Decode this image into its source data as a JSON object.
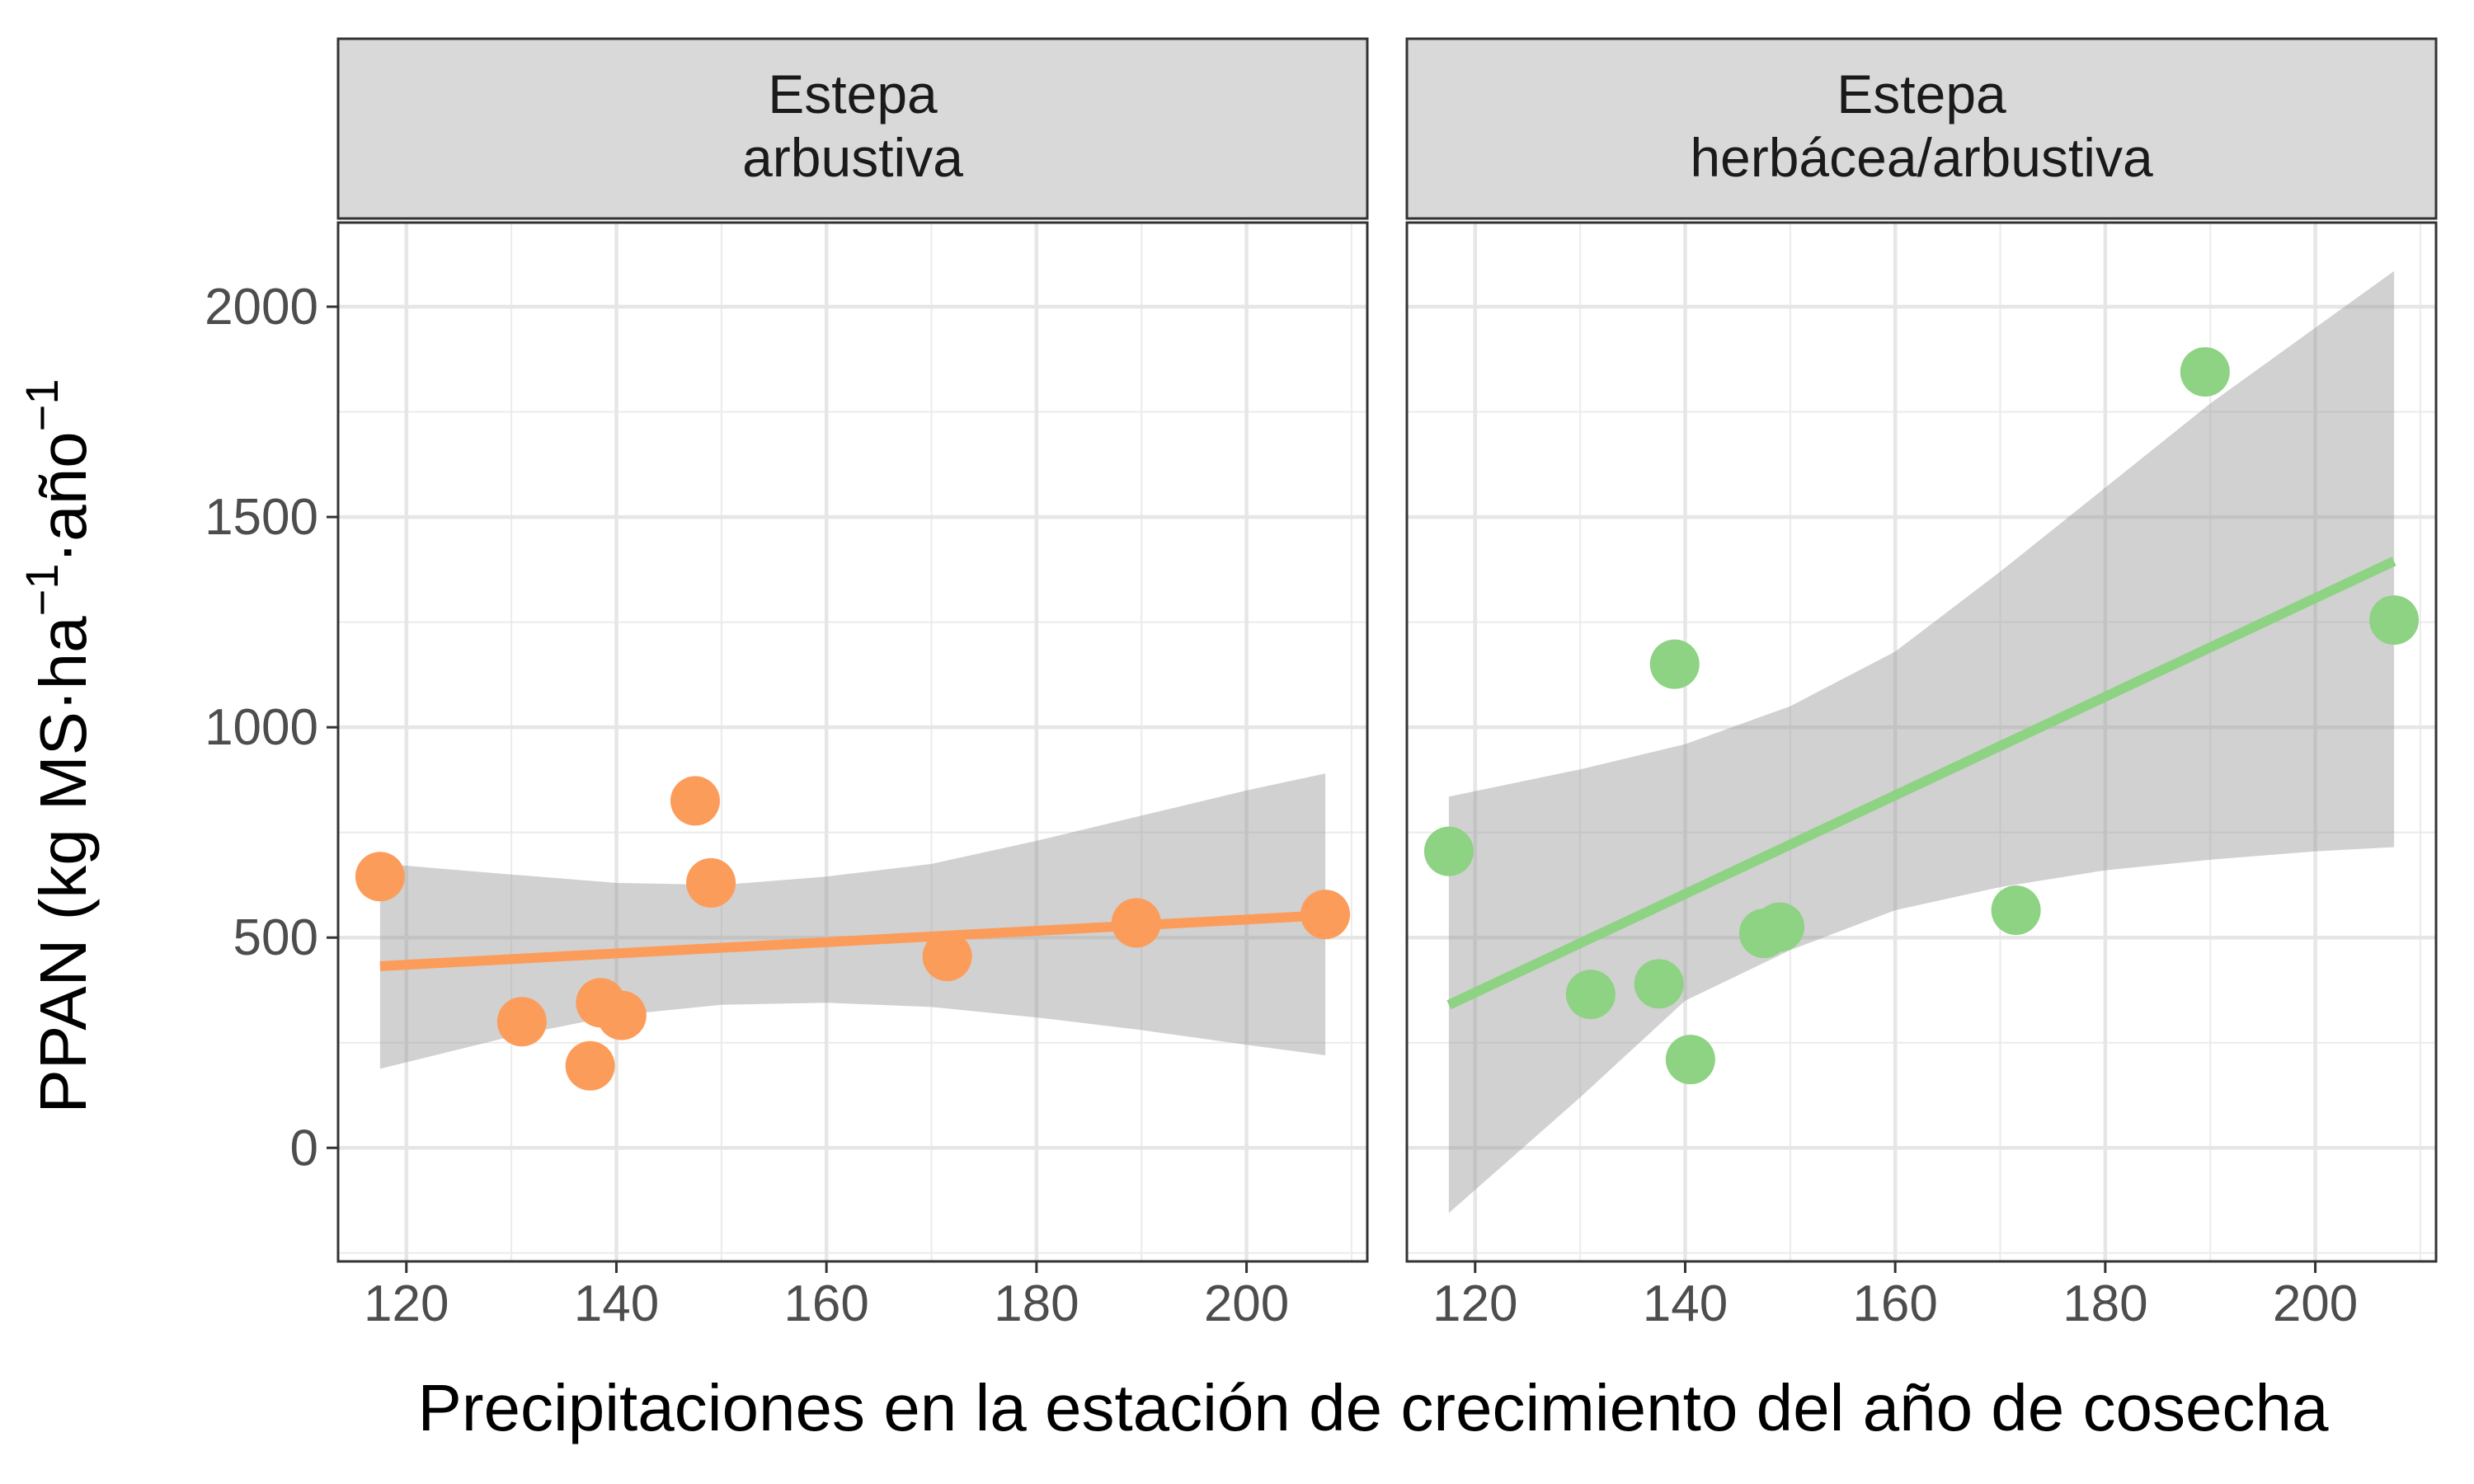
{
  "chart_data": {
    "type": "scatter",
    "ylabel": "PPAN (kg MS·ha⁻¹·año⁻¹)",
    "xlabel": "Precipitaciones en la estación de crecimiento del año de cosecha",
    "xlim": [
      113.5,
      211.5
    ],
    "ylim": [
      -270,
      2200
    ],
    "x_ticks": [
      "120",
      "140",
      "160",
      "180",
      "200"
    ],
    "y_ticks": [
      "0",
      "500",
      "1000",
      "1500",
      "2000"
    ],
    "grid": true,
    "smooth": "linear fit with confidence band",
    "panels": [
      {
        "title": [
          "Estepa",
          "arbustiva"
        ],
        "color": "#FC9C5A",
        "points": [
          {
            "x": 117.5,
            "y": 645
          },
          {
            "x": 131,
            "y": 300
          },
          {
            "x": 137.5,
            "y": 195
          },
          {
            "x": 138.5,
            "y": 345
          },
          {
            "x": 140.5,
            "y": 315
          },
          {
            "x": 147.5,
            "y": 825
          },
          {
            "x": 149,
            "y": 630
          },
          {
            "x": 171.5,
            "y": 455
          },
          {
            "x": 189.5,
            "y": 535
          },
          {
            "x": 207.5,
            "y": 555
          }
        ],
        "fit": {
          "x": [
            117.5,
            207.5
          ],
          "y": [
            432,
            553
          ]
        },
        "band": {
          "x": [
            117.5,
            130,
            140,
            150,
            160,
            170,
            180,
            190,
            200,
            207.5
          ],
          "upper": [
            676,
            650,
            630,
            625,
            645,
            675,
            730,
            790,
            850,
            890
          ],
          "lower": [
            188,
            265,
            315,
            340,
            345,
            335,
            310,
            280,
            245,
            220
          ]
        }
      },
      {
        "title": [
          "Estepa",
          "herbácea/arbustiva"
        ],
        "color": "#8ED283",
        "points": [
          {
            "x": 117.5,
            "y": 705
          },
          {
            "x": 131,
            "y": 365
          },
          {
            "x": 137.5,
            "y": 390
          },
          {
            "x": 139,
            "y": 1150
          },
          {
            "x": 140.5,
            "y": 210
          },
          {
            "x": 147.5,
            "y": 510
          },
          {
            "x": 149,
            "y": 525
          },
          {
            "x": 171.5,
            "y": 565
          },
          {
            "x": 189.5,
            "y": 1845
          },
          {
            "x": 207.5,
            "y": 1255
          }
        ],
        "fit": {
          "x": [
            117.5,
            207.5
          ],
          "y": [
            340,
            1395
          ]
        },
        "band": {
          "x": [
            117.5,
            130,
            140,
            150,
            160,
            170,
            180,
            190,
            200,
            207.5
          ],
          "upper": [
            835,
            900,
            960,
            1050,
            1180,
            1370,
            1570,
            1770,
            1950,
            2085
          ],
          "lower": [
            -155,
            120,
            350,
            470,
            565,
            620,
            660,
            685,
            705,
            715
          ]
        }
      }
    ]
  }
}
